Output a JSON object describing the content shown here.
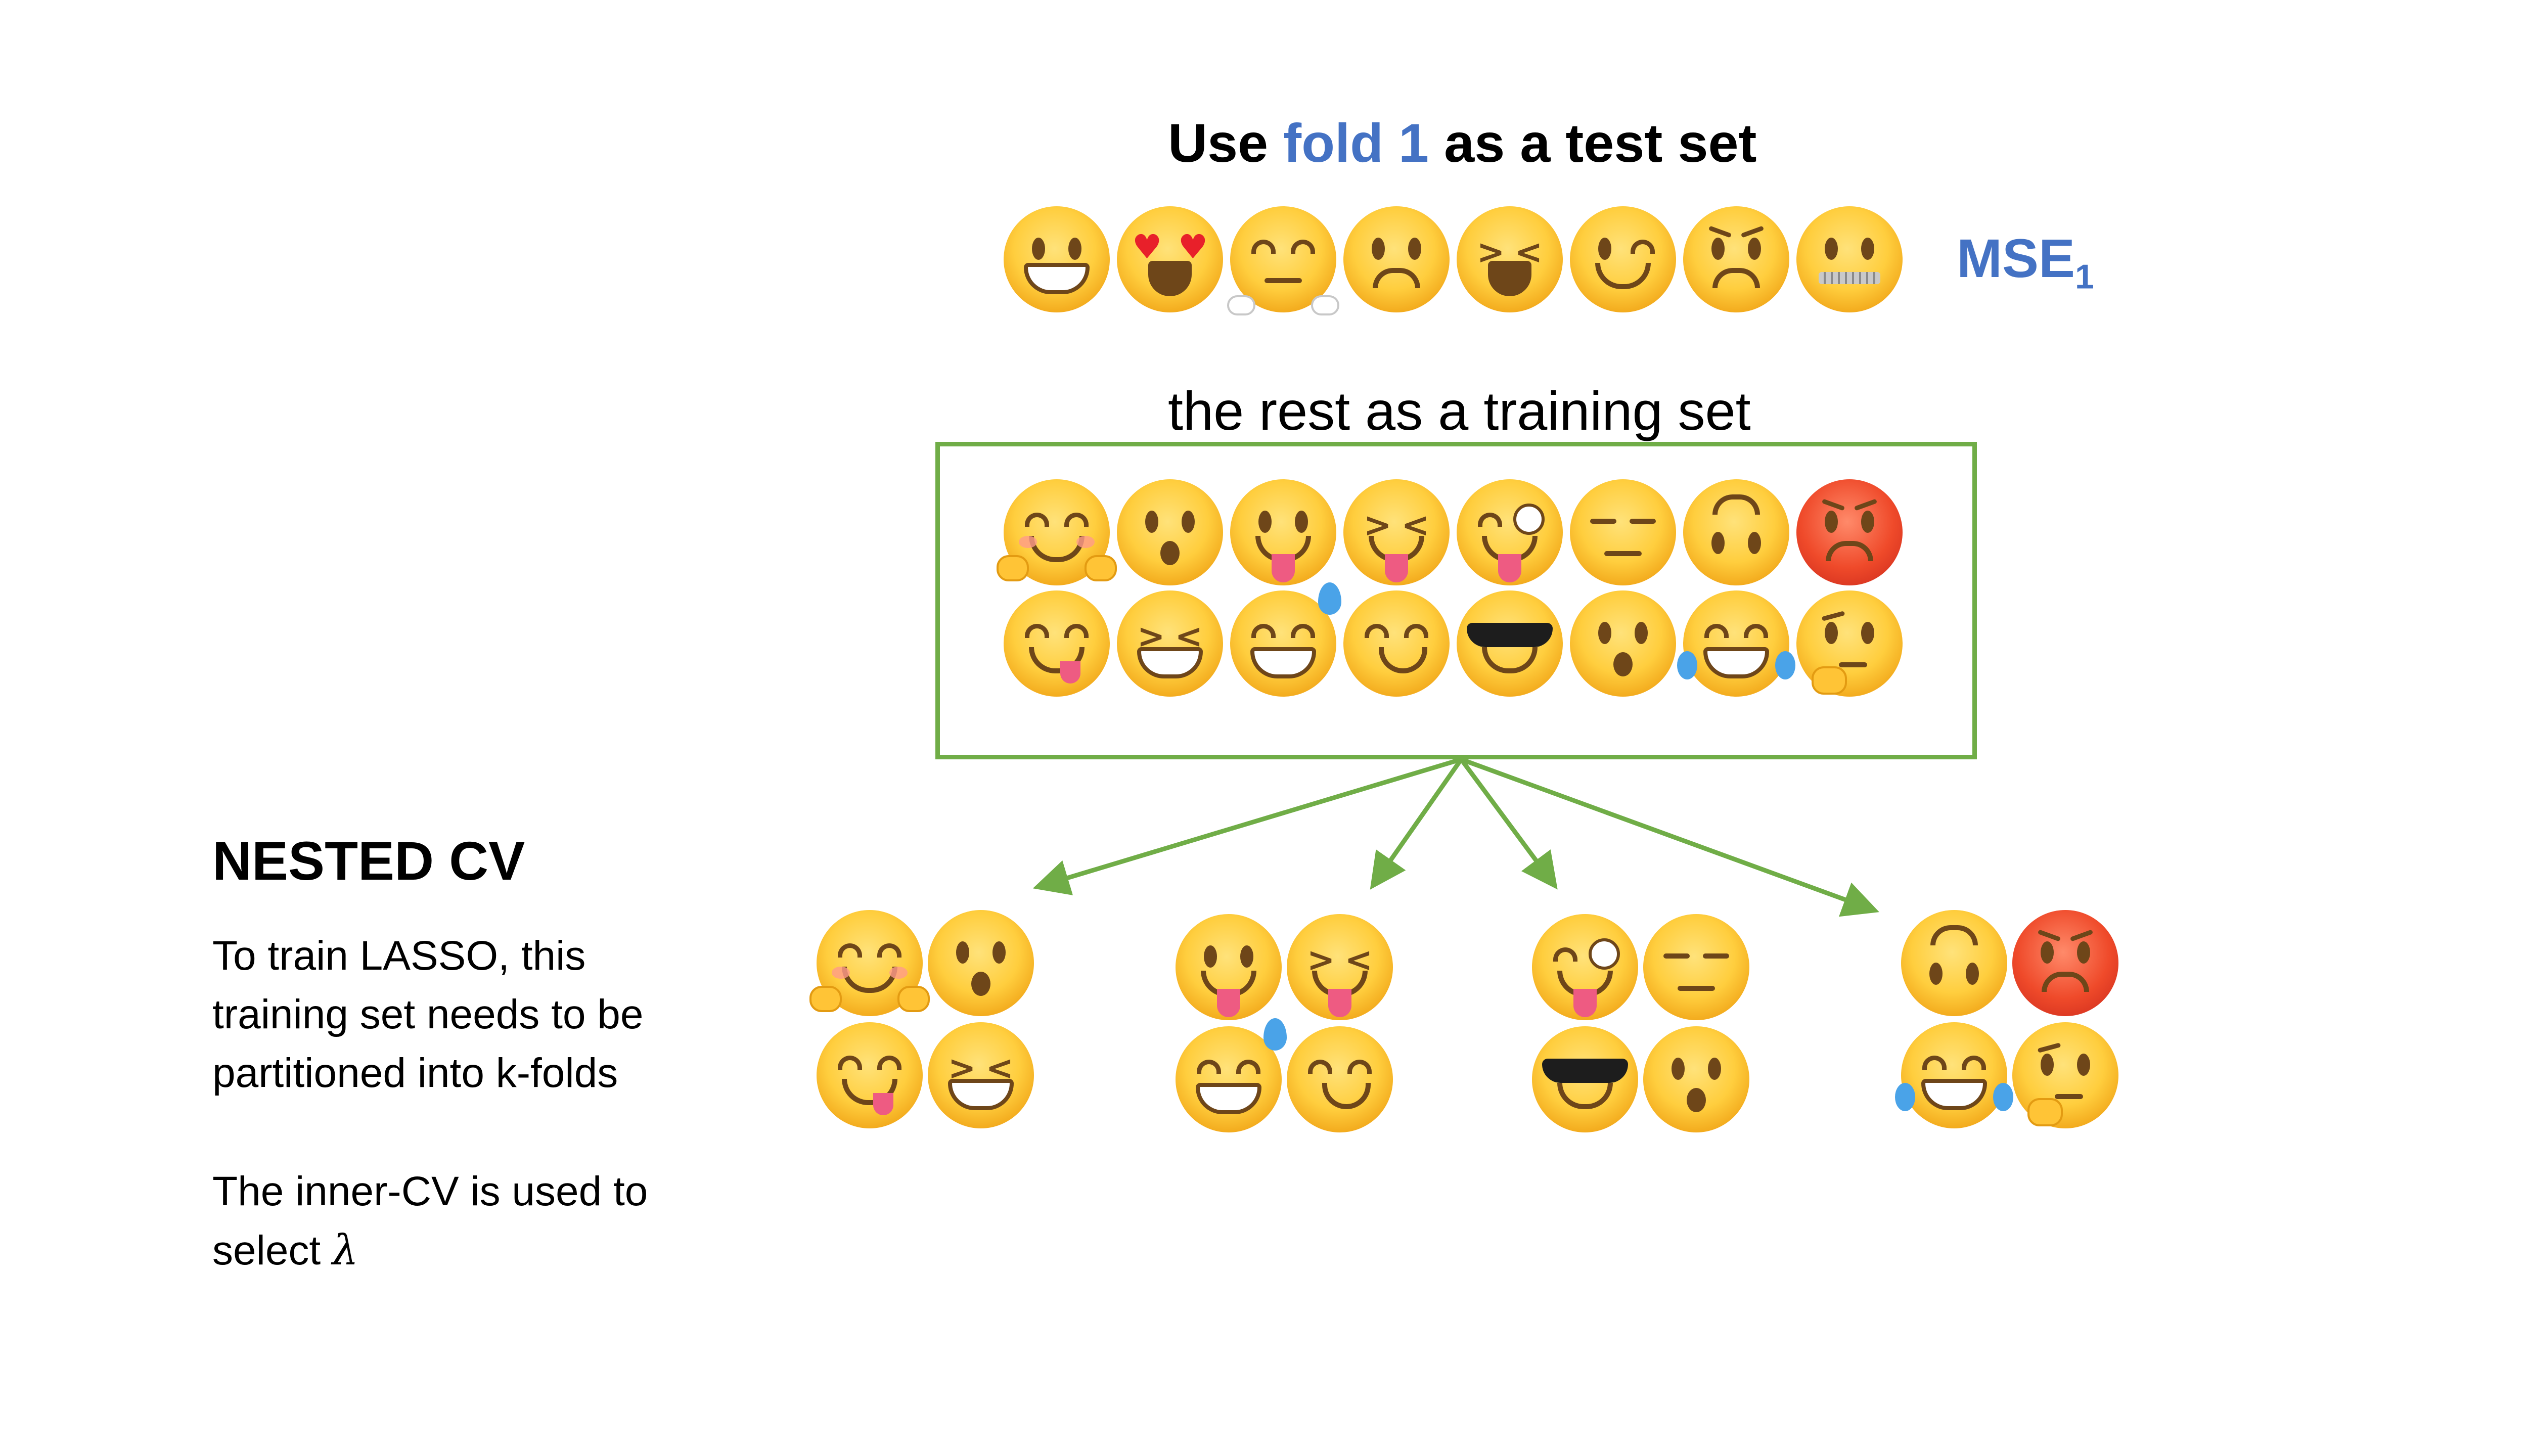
{
  "header": {
    "title_prefix": "Use ",
    "title_fold": "fold 1",
    "title_suffix": " as a test set",
    "mse_label": "MSE",
    "mse_subscript": "1",
    "training_label": "the rest as a training set"
  },
  "left_panel": {
    "heading": "NESTED CV",
    "para1_lines": [
      "To train LASSO, this",
      "training set needs to be",
      "partitioned into k-folds"
    ],
    "para2_line1": "The inner-CV is used to",
    "para2_line2_prefix": "select ",
    "para2_symbol": "λ"
  },
  "colors": {
    "accent_blue": "#4472c4",
    "frame_green": "#70ad47",
    "text": "#000000"
  },
  "test_fold_emojis": [
    "grimacing",
    "heart-eyes",
    "steam-nose",
    "frowning",
    "weary",
    "winking",
    "worried",
    "zipper-mouth"
  ],
  "training_emojis_row1": [
    "hugging",
    "hushed",
    "tongue-out",
    "squinting-tongue",
    "winking-tongue",
    "unamused",
    "upside-down",
    "angry-red"
  ],
  "training_emojis_row2": [
    "yum",
    "laughing",
    "sweat-smile",
    "smirking",
    "sunglasses",
    "open-mouth",
    "tears-of-joy",
    "thinking"
  ],
  "inner_folds": [
    [
      "hugging",
      "hushed",
      "yum",
      "laughing"
    ],
    [
      "tongue-out",
      "squinting-tongue",
      "sweat-smile",
      "smirking"
    ],
    [
      "winking-tongue",
      "unamused",
      "sunglasses",
      "open-mouth"
    ],
    [
      "upside-down",
      "angry-red",
      "tears-of-joy",
      "thinking"
    ]
  ]
}
